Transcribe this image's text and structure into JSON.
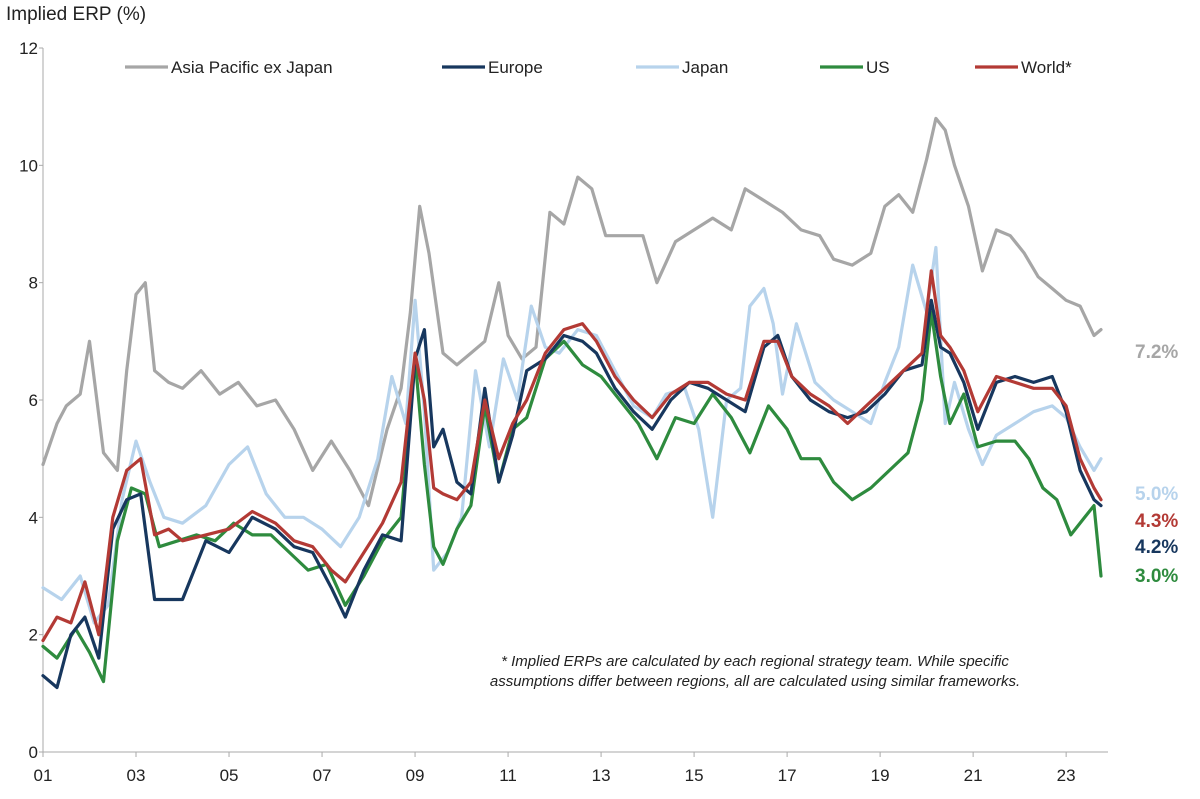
{
  "chart_data": {
    "type": "line",
    "ylabel": "Implied ERP (%)",
    "ylim": [
      0,
      12
    ],
    "yticks": [
      "0",
      "2",
      "4",
      "6",
      "8",
      "10",
      "12"
    ],
    "xlim": [
      2001,
      2023.9
    ],
    "xticks": [
      {
        "x": 2001,
        "label": "01"
      },
      {
        "x": 2003,
        "label": "03"
      },
      {
        "x": 2005,
        "label": "05"
      },
      {
        "x": 2007,
        "label": "07"
      },
      {
        "x": 2009,
        "label": "09"
      },
      {
        "x": 2011,
        "label": "11"
      },
      {
        "x": 2013,
        "label": "13"
      },
      {
        "x": 2015,
        "label": "15"
      },
      {
        "x": 2017,
        "label": "17"
      },
      {
        "x": 2019,
        "label": "19"
      },
      {
        "x": 2021,
        "label": "21"
      },
      {
        "x": 2023,
        "label": "23"
      }
    ],
    "grid": false,
    "legend_position": "top",
    "note_lines": [
      "* Implied ERPs are calculated by each regional strategy team. While specific",
      "assumptions differ between regions, all are calculated using similar frameworks."
    ],
    "series": [
      {
        "name": "Asia Pacific ex Japan",
        "color": "#a6a6a6",
        "end_label": "7.2%",
        "x": [
          2001.0,
          2001.3,
          2001.5,
          2001.8,
          2002.0,
          2002.3,
          2002.6,
          2002.8,
          2003.0,
          2003.2,
          2003.4,
          2003.7,
          2004.0,
          2004.4,
          2004.8,
          2005.2,
          2005.6,
          2006.0,
          2006.4,
          2006.8,
          2007.2,
          2007.6,
          2008.0,
          2008.4,
          2008.7,
          2008.9,
          2009.1,
          2009.3,
          2009.6,
          2009.9,
          2010.2,
          2010.5,
          2010.8,
          2011.0,
          2011.3,
          2011.6,
          2011.9,
          2012.2,
          2012.5,
          2012.8,
          2013.1,
          2013.5,
          2013.9,
          2014.2,
          2014.6,
          2015.0,
          2015.4,
          2015.8,
          2016.1,
          2016.5,
          2016.9,
          2017.3,
          2017.7,
          2018.0,
          2018.4,
          2018.8,
          2019.1,
          2019.4,
          2019.7,
          2020.0,
          2020.2,
          2020.4,
          2020.6,
          2020.9,
          2021.2,
          2021.5,
          2021.8,
          2022.1,
          2022.4,
          2022.7,
          2023.0,
          2023.3,
          2023.6,
          2023.75
        ],
        "y": [
          4.9,
          5.6,
          5.9,
          6.1,
          7.0,
          5.1,
          4.8,
          6.5,
          7.8,
          8.0,
          6.5,
          6.3,
          6.2,
          6.5,
          6.1,
          6.3,
          5.9,
          6.0,
          5.5,
          4.8,
          5.3,
          4.8,
          4.2,
          5.5,
          6.2,
          7.5,
          9.3,
          8.5,
          6.8,
          6.6,
          6.8,
          7.0,
          8.0,
          7.1,
          6.7,
          6.9,
          9.2,
          9.0,
          9.8,
          9.6,
          8.8,
          8.8,
          8.8,
          8.0,
          8.7,
          8.9,
          9.1,
          8.9,
          9.6,
          9.4,
          9.2,
          8.9,
          8.8,
          8.4,
          8.3,
          8.5,
          9.3,
          9.5,
          9.2,
          10.1,
          10.8,
          10.6,
          10.0,
          9.3,
          8.2,
          8.9,
          8.8,
          8.5,
          8.1,
          7.9,
          7.7,
          7.6,
          7.1,
          7.2
        ]
      },
      {
        "name": "Europe",
        "color": "#17375e",
        "end_label": "4.2%",
        "x": [
          2001.0,
          2001.3,
          2001.6,
          2001.9,
          2002.2,
          2002.5,
          2002.8,
          2003.1,
          2003.4,
          2003.7,
          2004.0,
          2004.5,
          2005.0,
          2005.5,
          2006.0,
          2006.4,
          2006.8,
          2007.2,
          2007.5,
          2007.9,
          2008.3,
          2008.7,
          2009.0,
          2009.2,
          2009.4,
          2009.6,
          2009.9,
          2010.2,
          2010.5,
          2010.8,
          2011.1,
          2011.4,
          2011.8,
          2012.2,
          2012.6,
          2012.9,
          2013.3,
          2013.7,
          2014.1,
          2014.5,
          2014.9,
          2015.3,
          2015.7,
          2016.1,
          2016.5,
          2016.8,
          2017.1,
          2017.5,
          2017.9,
          2018.3,
          2018.7,
          2019.1,
          2019.5,
          2019.9,
          2020.1,
          2020.3,
          2020.5,
          2020.8,
          2021.1,
          2021.5,
          2021.9,
          2022.3,
          2022.7,
          2023.0,
          2023.3,
          2023.6,
          2023.75
        ],
        "y": [
          1.3,
          1.1,
          2.0,
          2.3,
          1.6,
          3.8,
          4.3,
          4.4,
          2.6,
          2.6,
          2.6,
          3.6,
          3.4,
          4.0,
          3.8,
          3.5,
          3.4,
          2.8,
          2.3,
          3.1,
          3.7,
          3.6,
          6.7,
          7.2,
          5.2,
          5.5,
          4.6,
          4.4,
          6.2,
          4.6,
          5.4,
          6.5,
          6.7,
          7.1,
          7.0,
          6.8,
          6.2,
          5.8,
          5.5,
          6.0,
          6.3,
          6.2,
          6.0,
          5.8,
          6.9,
          7.1,
          6.4,
          6.0,
          5.8,
          5.7,
          5.8,
          6.1,
          6.5,
          6.6,
          7.7,
          6.9,
          6.8,
          6.3,
          5.5,
          6.3,
          6.4,
          6.3,
          6.4,
          5.8,
          4.8,
          4.3,
          4.2
        ]
      },
      {
        "name": "Japan",
        "color": "#b7d3ec",
        "end_label": "5.0%",
        "x": [
          2001.0,
          2001.4,
          2001.8,
          2002.1,
          2002.4,
          2002.7,
          2003.0,
          2003.3,
          2003.6,
          2004.0,
          2004.5,
          2005.0,
          2005.4,
          2005.8,
          2006.2,
          2006.6,
          2007.0,
          2007.4,
          2007.8,
          2008.2,
          2008.5,
          2008.8,
          2009.0,
          2009.2,
          2009.4,
          2009.7,
          2010.0,
          2010.3,
          2010.6,
          2010.9,
          2011.2,
          2011.5,
          2011.8,
          2012.1,
          2012.5,
          2012.9,
          2013.3,
          2013.7,
          2014.1,
          2014.4,
          2014.8,
          2015.1,
          2015.4,
          2015.7,
          2016.0,
          2016.2,
          2016.5,
          2016.7,
          2016.9,
          2017.2,
          2017.6,
          2018.0,
          2018.4,
          2018.8,
          2019.1,
          2019.4,
          2019.7,
          2020.0,
          2020.2,
          2020.4,
          2020.6,
          2020.9,
          2021.2,
          2021.5,
          2021.9,
          2022.3,
          2022.7,
          2023.0,
          2023.3,
          2023.6,
          2023.75
        ],
        "y": [
          2.8,
          2.6,
          3.0,
          2.2,
          2.5,
          4.3,
          5.3,
          4.6,
          4.0,
          3.9,
          4.2,
          4.9,
          5.2,
          4.4,
          4.0,
          4.0,
          3.8,
          3.5,
          4.0,
          5.0,
          6.4,
          5.6,
          7.7,
          5.8,
          3.1,
          3.4,
          4.0,
          6.5,
          5.2,
          6.7,
          6.0,
          7.6,
          6.9,
          6.8,
          7.2,
          7.1,
          6.5,
          5.9,
          5.7,
          6.1,
          6.2,
          5.5,
          4.0,
          6.0,
          6.2,
          7.6,
          7.9,
          7.3,
          6.1,
          7.3,
          6.3,
          6.0,
          5.8,
          5.6,
          6.3,
          6.9,
          8.3,
          7.5,
          8.6,
          5.6,
          6.3,
          5.5,
          4.9,
          5.4,
          5.6,
          5.8,
          5.9,
          5.7,
          5.2,
          4.8,
          5.0
        ]
      },
      {
        "name": "US",
        "color": "#2e8b3e",
        "end_label": "3.0%",
        "x": [
          2001.0,
          2001.3,
          2001.7,
          2002.0,
          2002.3,
          2002.6,
          2002.9,
          2003.2,
          2003.5,
          2003.9,
          2004.3,
          2004.7,
          2005.1,
          2005.5,
          2005.9,
          2006.3,
          2006.7,
          2007.1,
          2007.5,
          2007.9,
          2008.3,
          2008.7,
          2009.0,
          2009.2,
          2009.4,
          2009.6,
          2009.9,
          2010.2,
          2010.5,
          2010.8,
          2011.1,
          2011.4,
          2011.8,
          2012.2,
          2012.6,
          2013.0,
          2013.4,
          2013.8,
          2014.2,
          2014.6,
          2015.0,
          2015.4,
          2015.8,
          2016.2,
          2016.6,
          2017.0,
          2017.3,
          2017.7,
          2018.0,
          2018.4,
          2018.8,
          2019.2,
          2019.6,
          2019.9,
          2020.1,
          2020.3,
          2020.5,
          2020.8,
          2021.1,
          2021.5,
          2021.9,
          2022.2,
          2022.5,
          2022.8,
          2023.1,
          2023.4,
          2023.6,
          2023.75
        ],
        "y": [
          1.8,
          1.6,
          2.1,
          1.7,
          1.2,
          3.6,
          4.5,
          4.4,
          3.5,
          3.6,
          3.7,
          3.6,
          3.9,
          3.7,
          3.7,
          3.4,
          3.1,
          3.2,
          2.5,
          3.0,
          3.6,
          4.0,
          6.7,
          4.9,
          3.5,
          3.2,
          3.8,
          4.2,
          5.9,
          4.6,
          5.5,
          5.7,
          6.7,
          7.0,
          6.6,
          6.4,
          6.0,
          5.6,
          5.0,
          5.7,
          5.6,
          6.1,
          5.7,
          5.1,
          5.9,
          5.5,
          5.0,
          5.0,
          4.6,
          4.3,
          4.5,
          4.8,
          5.1,
          6.0,
          7.5,
          6.4,
          5.6,
          6.1,
          5.2,
          5.3,
          5.3,
          5.0,
          4.5,
          4.3,
          3.7,
          4.0,
          4.2,
          3.0
        ]
      },
      {
        "name": "World*",
        "color": "#b33a35",
        "end_label": "4.3%",
        "x": [
          2001.0,
          2001.3,
          2001.6,
          2001.9,
          2002.2,
          2002.5,
          2002.8,
          2003.1,
          2003.4,
          2003.7,
          2004.0,
          2004.5,
          2005.0,
          2005.5,
          2006.0,
          2006.4,
          2006.8,
          2007.2,
          2007.5,
          2007.9,
          2008.3,
          2008.7,
          2009.0,
          2009.2,
          2009.4,
          2009.6,
          2009.9,
          2010.2,
          2010.5,
          2010.8,
          2011.1,
          2011.4,
          2011.8,
          2012.2,
          2012.6,
          2012.9,
          2013.3,
          2013.7,
          2014.1,
          2014.5,
          2014.9,
          2015.3,
          2015.7,
          2016.1,
          2016.5,
          2016.8,
          2017.1,
          2017.5,
          2017.9,
          2018.3,
          2018.7,
          2019.1,
          2019.5,
          2019.9,
          2020.1,
          2020.3,
          2020.5,
          2020.8,
          2021.1,
          2021.5,
          2021.9,
          2022.3,
          2022.7,
          2023.0,
          2023.3,
          2023.6,
          2023.75
        ],
        "y": [
          1.9,
          2.3,
          2.2,
          2.9,
          2.0,
          4.0,
          4.8,
          5.0,
          3.7,
          3.8,
          3.6,
          3.7,
          3.8,
          4.1,
          3.9,
          3.6,
          3.5,
          3.1,
          2.9,
          3.4,
          3.9,
          4.6,
          6.8,
          6.0,
          4.5,
          4.4,
          4.3,
          4.6,
          6.0,
          5.0,
          5.6,
          6.0,
          6.8,
          7.2,
          7.3,
          7.0,
          6.4,
          6.0,
          5.7,
          6.1,
          6.3,
          6.3,
          6.1,
          6.0,
          7.0,
          7.0,
          6.4,
          6.1,
          5.9,
          5.6,
          5.9,
          6.2,
          6.5,
          6.8,
          8.2,
          7.1,
          6.9,
          6.5,
          5.8,
          6.4,
          6.3,
          6.2,
          6.2,
          5.9,
          5.0,
          4.5,
          4.3
        ]
      }
    ]
  }
}
